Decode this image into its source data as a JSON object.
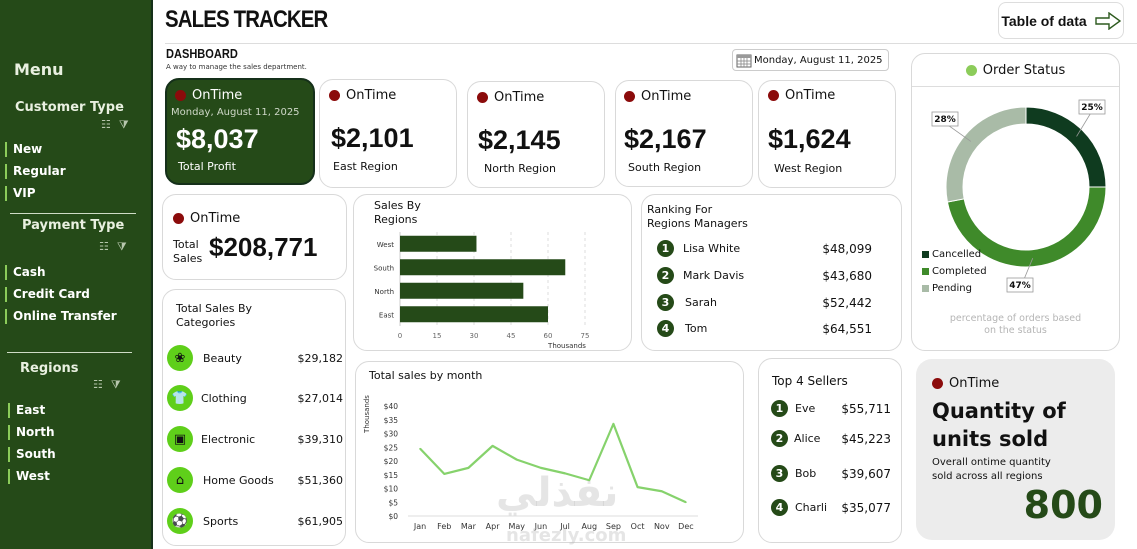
{
  "sidebar": {
    "menu_title": "Menu",
    "customer_type": {
      "title": "Customer Type",
      "items": [
        "New",
        "Regular",
        "VIP"
      ]
    },
    "payment_type": {
      "title": "Payment Type",
      "items": [
        "Cash",
        "Credit Card",
        "Online Transfer"
      ]
    },
    "regions": {
      "title": "Regions",
      "items": [
        "East",
        "North",
        "South",
        "West"
      ]
    }
  },
  "header": {
    "title": "SALES TRACKER",
    "section": "DASHBOARD",
    "subtitle": "A way to manage the sales department.",
    "table_button": "Table of data",
    "date": "Monday, August 11, 2025"
  },
  "status_label": "OnTime",
  "profit_card": {
    "date": "Monday, August 11, 2025",
    "value": "$8,037",
    "label": "Total Profit"
  },
  "region_cards": [
    {
      "value": "$2,101",
      "label": "East Region"
    },
    {
      "value": "$2,145",
      "label": "North Region"
    },
    {
      "value": "$2,167",
      "label": "South Region"
    },
    {
      "value": "$1,624",
      "label": "West Region"
    }
  ],
  "total_sales": {
    "label_line1": "Total",
    "label_line2": "Sales",
    "value": "$208,771"
  },
  "categories": {
    "title_line1": "Total Sales By",
    "title_line2": "Categories",
    "items": [
      {
        "name": "Beauty",
        "value": "$29,182",
        "icon": "lotus-icon"
      },
      {
        "name": "Clothing",
        "value": "$27,014",
        "icon": "shirt-icon"
      },
      {
        "name": "Electronic",
        "value": "$39,310",
        "icon": "appliance-icon"
      },
      {
        "name": "Home Goods",
        "value": "$51,360",
        "icon": "furniture-icon"
      },
      {
        "name": "Sports",
        "value": "$61,905",
        "icon": "sports-icon"
      }
    ]
  },
  "managers": {
    "title_line1": "Ranking For",
    "title_line2": "Regions Managers",
    "items": [
      {
        "rank": "1",
        "name": "Lisa White",
        "value": "$48,099"
      },
      {
        "rank": "2",
        "name": "Mark Davis",
        "value": "$43,680"
      },
      {
        "rank": "3",
        "name": "Sarah",
        "value": "$52,442"
      },
      {
        "rank": "4",
        "name": "Tom",
        "value": "$64,551"
      }
    ]
  },
  "sellers": {
    "title": "Top 4 Sellers",
    "items": [
      {
        "rank": "1",
        "name": "Eve",
        "value": "$55,711"
      },
      {
        "rank": "2",
        "name": "Alice",
        "value": "$45,223"
      },
      {
        "rank": "3",
        "name": "Bob",
        "value": "$39,607"
      },
      {
        "rank": "4",
        "name": "Charli",
        "value": "$35,077"
      }
    ]
  },
  "quantity": {
    "title_line1": "Quantity of",
    "title_line2": "units sold",
    "desc_line1": "Overall ontime quantity",
    "desc_line2": "sold across all regions",
    "value": "800"
  },
  "order_note": {
    "line1": "percentage of orders based",
    "line2": "on the status"
  },
  "watermark": {
    "arabic": "نفذلي",
    "latin": "nafezly.com"
  },
  "colors": {
    "sidebar": "#254a18",
    "accent": "#8ccc5a",
    "dot": "#8b0b0b",
    "line": "#86d26c"
  },
  "chart_data": [
    {
      "type": "bar",
      "title": "Sales By Regions",
      "categories": [
        "West",
        "South",
        "North",
        "East"
      ],
      "values": [
        31,
        67,
        50,
        60
      ],
      "xlabel": "Thousands",
      "xlim": [
        0,
        75
      ],
      "ticks": [
        "0",
        "15",
        "30",
        "45",
        "60",
        "75"
      ],
      "grid": true
    },
    {
      "type": "line",
      "title": "Total sales by month",
      "ylabel": "Thousands",
      "categories": [
        "Jan",
        "Feb",
        "Mar",
        "Apr",
        "May",
        "Jun",
        "Jul",
        "Aug",
        "Sep",
        "Oct",
        "Nov",
        "Dec"
      ],
      "values": [
        24.5,
        15.3,
        17.5,
        25.5,
        20.5,
        17.5,
        15.5,
        13,
        33.5,
        10.5,
        9,
        5
      ],
      "ylim": [
        0,
        40
      ],
      "yticks": [
        "$0",
        "$5",
        "$10",
        "$15",
        "$20",
        "$25",
        "$30",
        "$35",
        "$40"
      ]
    },
    {
      "type": "pie",
      "title": "Order Status",
      "labels": [
        "Cancelled",
        "Completed",
        "Pending"
      ],
      "values": [
        25,
        47,
        28
      ],
      "value_labels": [
        "25%",
        "47%",
        "28%"
      ],
      "colors": [
        "#0f3b1f",
        "#3f8a2a",
        "#a9bba7"
      ],
      "legend": "bottom-left"
    }
  ]
}
